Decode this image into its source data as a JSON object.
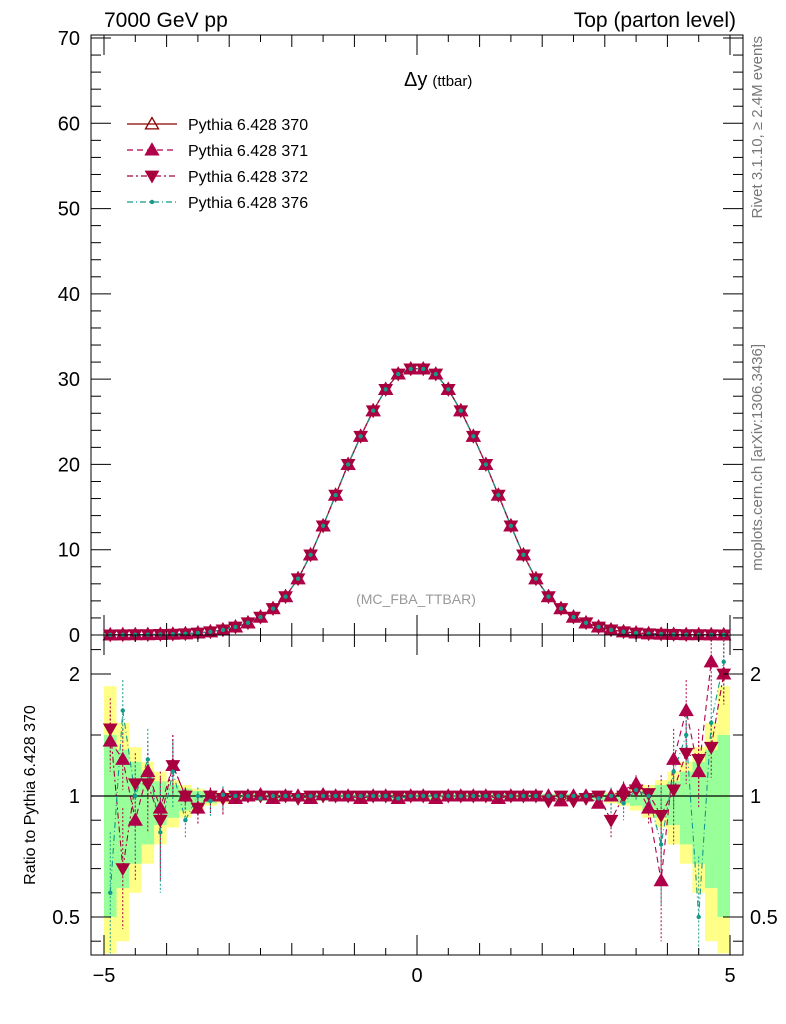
{
  "header": {
    "left": "7000 GeV pp",
    "right": "Top (parton level)"
  },
  "side": {
    "rivet": "Rivet 3.1.10, ≥ 2.4M events",
    "mcplots": "mcplots.cern.ch [arXiv:1306.3436]"
  },
  "colors": {
    "s370": "#8b0000",
    "s371": "#b0004a",
    "s372": "#a8003c",
    "s376": "#139a8a",
    "band_inner": "#99ff99",
    "band_outer": "#ffff88"
  },
  "chart_data": [
    {
      "type": "line",
      "title": "Δy (ttbar)",
      "title_main": "Δy",
      "title_sub": "(ttbar)",
      "watermark": "(MC_FBA_TTBAR)",
      "xlim": [
        -5.0,
        5.0
      ],
      "ylim": [
        0,
        70
      ],
      "yticks": [
        0,
        10,
        20,
        30,
        40,
        50,
        60,
        70
      ],
      "ytick_labels": [
        "0",
        "10",
        "20",
        "30",
        "40",
        "50",
        "60",
        "70"
      ],
      "legend_placement": "top-left",
      "x": [
        -4.9,
        -4.7,
        -4.5,
        -4.3,
        -4.1,
        -3.9,
        -3.7,
        -3.5,
        -3.3,
        -3.1,
        -2.9,
        -2.7,
        -2.5,
        -2.3,
        -2.1,
        -1.9,
        -1.7,
        -1.5,
        -1.3,
        -1.1,
        -0.9,
        -0.7,
        -0.5,
        -0.3,
        -0.1,
        0.1,
        0.3,
        0.5,
        0.7,
        0.9,
        1.1,
        1.3,
        1.5,
        1.7,
        1.9,
        2.1,
        2.3,
        2.5,
        2.7,
        2.9,
        3.1,
        3.3,
        3.5,
        3.7,
        3.9,
        4.1,
        4.3,
        4.5,
        4.7,
        4.9
      ],
      "series": [
        {
          "name": "Pythia 6.428 370",
          "marker": "triangle-open",
          "values": [
            0.02,
            0.03,
            0.04,
            0.05,
            0.07,
            0.1,
            0.15,
            0.24,
            0.38,
            0.6,
            0.94,
            1.43,
            2.1,
            3.1,
            4.5,
            6.6,
            9.4,
            12.8,
            16.4,
            20.0,
            23.3,
            26.3,
            28.8,
            30.6,
            31.2,
            31.2,
            30.6,
            28.8,
            26.3,
            23.3,
            20.0,
            16.4,
            12.8,
            9.4,
            6.6,
            4.5,
            3.1,
            2.1,
            1.43,
            0.94,
            0.6,
            0.38,
            0.24,
            0.15,
            0.1,
            0.07,
            0.05,
            0.04,
            0.03,
            0.02
          ]
        },
        {
          "name": "Pythia 6.428 371",
          "marker": "triangle-up",
          "values": [
            0.02,
            0.03,
            0.04,
            0.05,
            0.07,
            0.1,
            0.15,
            0.24,
            0.38,
            0.6,
            0.94,
            1.43,
            2.1,
            3.1,
            4.5,
            6.6,
            9.4,
            12.8,
            16.4,
            20.0,
            23.3,
            26.3,
            28.8,
            30.6,
            31.2,
            31.2,
            30.6,
            28.8,
            26.3,
            23.3,
            20.0,
            16.4,
            12.8,
            9.4,
            6.6,
            4.5,
            3.1,
            2.1,
            1.43,
            0.94,
            0.6,
            0.38,
            0.24,
            0.15,
            0.1,
            0.07,
            0.05,
            0.04,
            0.03,
            0.02
          ]
        },
        {
          "name": "Pythia 6.428 372",
          "marker": "triangle-down",
          "values": [
            0.02,
            0.03,
            0.04,
            0.05,
            0.07,
            0.1,
            0.15,
            0.24,
            0.38,
            0.6,
            0.94,
            1.43,
            2.1,
            3.1,
            4.5,
            6.6,
            9.4,
            12.8,
            16.4,
            20.0,
            23.3,
            26.3,
            28.8,
            30.6,
            31.2,
            31.2,
            30.6,
            28.8,
            26.3,
            23.3,
            20.0,
            16.4,
            12.8,
            9.4,
            6.6,
            4.5,
            3.1,
            2.1,
            1.43,
            0.94,
            0.6,
            0.38,
            0.24,
            0.15,
            0.1,
            0.07,
            0.05,
            0.04,
            0.03,
            0.02
          ]
        },
        {
          "name": "Pythia 6.428 376",
          "marker": "dot",
          "values": [
            0.02,
            0.03,
            0.04,
            0.05,
            0.07,
            0.1,
            0.15,
            0.24,
            0.38,
            0.6,
            0.94,
            1.43,
            2.1,
            3.1,
            4.5,
            6.6,
            9.4,
            12.8,
            16.4,
            20.0,
            23.3,
            26.3,
            28.8,
            30.6,
            31.2,
            31.2,
            30.6,
            28.8,
            26.3,
            23.3,
            20.0,
            16.4,
            12.8,
            9.4,
            6.6,
            4.5,
            3.1,
            2.1,
            1.43,
            0.94,
            0.6,
            0.38,
            0.24,
            0.15,
            0.1,
            0.07,
            0.05,
            0.04,
            0.03,
            0.02
          ]
        }
      ]
    },
    {
      "type": "line",
      "ylabel": "Ratio to Pythia 6.428 370",
      "xlim": [
        -5.0,
        5.0
      ],
      "ylim": [
        0.35,
        2.35
      ],
      "yticks": [
        0.5,
        1,
        2
      ],
      "ytick_labels": [
        "0.5",
        "1",
        "2"
      ],
      "xticks": [
        -5,
        0,
        5
      ],
      "xtick_labels": [
        "−5",
        "0",
        "5"
      ],
      "reference": 1.0,
      "band_x": [
        -4.9,
        -4.7,
        -4.5,
        -4.3,
        -4.1,
        -3.9,
        -3.7,
        -3.5,
        -3.3,
        -3.1,
        3.1,
        3.3,
        3.5,
        3.7,
        3.9,
        4.1,
        4.3,
        4.5,
        4.7,
        4.9
      ],
      "band_inner": [
        0.5,
        0.38,
        0.28,
        0.2,
        0.12,
        0.09,
        0.06,
        0.04,
        0.03,
        0.02,
        0.02,
        0.03,
        0.04,
        0.06,
        0.09,
        0.12,
        0.2,
        0.28,
        0.38,
        0.5
      ],
      "band_outer": [
        0.9,
        0.6,
        0.4,
        0.28,
        0.2,
        0.13,
        0.09,
        0.06,
        0.04,
        0.03,
        0.03,
        0.04,
        0.06,
        0.09,
        0.13,
        0.2,
        0.28,
        0.4,
        0.6,
        0.9
      ],
      "series": [
        {
          "name": "Pythia 6.428 371",
          "values": [
            1.45,
            1.3,
            0.9,
            1.2,
            0.95,
            1.25,
            1.0,
            0.95,
            1.0,
            1.0,
            0.99,
            1.0,
            1.01,
            0.99,
            1.0,
            1.0,
            0.99,
            1.01,
            1.0,
            1.0,
            0.99,
            1.0,
            1.0,
            0.99,
            1.0,
            1.0,
            0.99,
            1.0,
            1.0,
            1.0,
            1.0,
            0.99,
            1.0,
            1.0,
            1.0,
            1.0,
            0.98,
            1.0,
            1.0,
            0.97,
            1.0,
            1.05,
            1.1,
            0.95,
            0.65,
            1.3,
            1.7,
            1.2,
            2.1,
            2.0
          ]
        },
        {
          "name": "Pythia 6.428 372",
          "values": [
            1.55,
            0.7,
            1.1,
            1.1,
            0.9,
            1.25,
            1.0,
            0.95,
            1.0,
            0.99,
            1.0,
            1.0,
            1.0,
            1.0,
            1.0,
            0.99,
            1.0,
            1.0,
            1.0,
            1.0,
            1.0,
            1.0,
            1.0,
            1.0,
            1.0,
            1.0,
            1.0,
            1.0,
            1.0,
            1.0,
            1.0,
            1.0,
            1.0,
            1.0,
            1.0,
            0.98,
            1.0,
            0.98,
            0.99,
            1.0,
            0.9,
            1.0,
            1.05,
            1.02,
            0.92,
            1.05,
            1.35,
            1.3,
            1.4,
            2.0
          ]
        },
        {
          "name": "Pythia 6.428 376",
          "values": [
            0.6,
            1.7,
            1.0,
            1.3,
            0.85,
            1.2,
            0.9,
            1.0,
            0.98,
            1.01,
            1.0,
            1.0,
            0.99,
            1.0,
            1.0,
            1.0,
            1.0,
            1.0,
            1.0,
            1.0,
            1.0,
            1.0,
            1.0,
            0.99,
            1.0,
            1.0,
            1.0,
            1.0,
            1.0,
            1.0,
            1.0,
            1.0,
            1.0,
            1.0,
            1.0,
            1.0,
            1.0,
            1.0,
            1.0,
            0.99,
            1.0,
            0.97,
            1.05,
            1.0,
            0.8,
            1.2,
            1.5,
            0.5,
            1.6,
            2.1
          ]
        }
      ]
    }
  ]
}
